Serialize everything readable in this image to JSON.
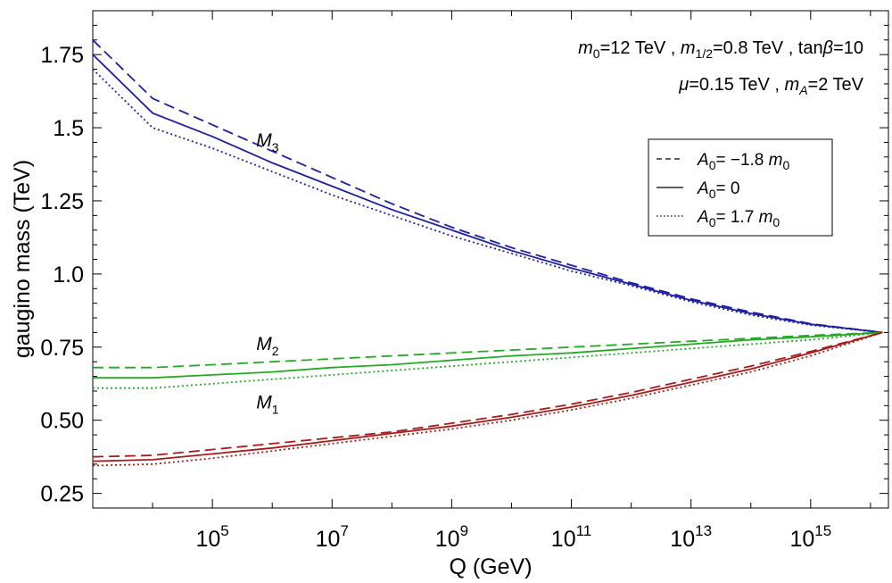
{
  "chart_data": {
    "type": "line",
    "xlabel": "Q (GeV)",
    "ylabel": "gaugino mass (TeV)",
    "x_scale": "log10",
    "xlim": [
      1000,
      1e+16
    ],
    "ylim": [
      0.2,
      1.9
    ],
    "x_ticks": [
      100000.0,
      10000000.0,
      1000000000.0,
      100000000000.0,
      10000000000000.0,
      1000000000000000.0
    ],
    "x_tick_labels": [
      {
        "base": "10",
        "exp": "5"
      },
      {
        "base": "10",
        "exp": "7"
      },
      {
        "base": "10",
        "exp": "9"
      },
      {
        "base": "10",
        "exp": "11"
      },
      {
        "base": "10",
        "exp": "13"
      },
      {
        "base": "10",
        "exp": "15"
      }
    ],
    "y_ticks": [
      0.25,
      0.5,
      0.75,
      1.0,
      1.25,
      1.5,
      1.75
    ],
    "y_tick_labels": [
      "0.25",
      "0.50",
      "0.75",
      "1.0",
      "1.25",
      "1.5",
      "1.75"
    ],
    "grid": false,
    "parameters": {
      "line1": [
        {
          "t": "m",
          "i": true
        },
        {
          "t": "0",
          "s": true
        },
        {
          "t": "=12 TeV , "
        },
        {
          "t": "m",
          "i": true
        },
        {
          "t": "1/2",
          "s": true
        },
        {
          "t": "=0.8 TeV , tan"
        },
        {
          "t": "β",
          "i": true
        },
        {
          "t": "=10"
        }
      ],
      "line2": [
        {
          "t": "μ",
          "i": true
        },
        {
          "t": "=0.15 TeV , "
        },
        {
          "t": "m",
          "i": true
        },
        {
          "t": "A",
          "s": true,
          "i": true
        },
        {
          "t": "=2 TeV"
        }
      ]
    },
    "legend": {
      "placement": "upper-right",
      "entries": [
        {
          "style": "dashed",
          "parts": [
            {
              "t": "A",
              "i": true
            },
            {
              "t": "0",
              "s": true
            },
            {
              "t": "= −1.8 "
            },
            {
              "t": "m",
              "i": true
            },
            {
              "t": "0",
              "s": true
            }
          ]
        },
        {
          "style": "solid",
          "parts": [
            {
              "t": "A",
              "i": true
            },
            {
              "t": "0",
              "s": true
            },
            {
              "t": "= 0"
            }
          ]
        },
        {
          "style": "dotted",
          "parts": [
            {
              "t": "A",
              "i": true
            },
            {
              "t": "0",
              "s": true
            },
            {
              "t": "= 1.7 "
            },
            {
              "t": "m",
              "i": true
            },
            {
              "t": "0",
              "s": true
            }
          ]
        }
      ]
    },
    "curve_labels": [
      {
        "group": "M3",
        "text": "M",
        "sub": "3",
        "at_log10_x": 6.0,
        "at_y": 1.46
      },
      {
        "group": "M2",
        "text": "M",
        "sub": "2",
        "at_log10_x": 6.0,
        "at_y": 0.765
      },
      {
        "group": "M1",
        "text": "M",
        "sub": "1",
        "at_log10_x": 6.0,
        "at_y": 0.565
      }
    ],
    "colors": {
      "M3": "#1f1fa6",
      "M2": "#22aa22",
      "M1": "#aa1a1a"
    },
    "series": [
      {
        "group": "M3",
        "style": "dashed",
        "log10_x": [
          3.0,
          4.0,
          5,
          6,
          7,
          8,
          9,
          10,
          11,
          12,
          13,
          14,
          15,
          16.2
        ],
        "y": [
          1.8,
          1.6,
          1.51,
          1.42,
          1.33,
          1.24,
          1.16,
          1.09,
          1.03,
          0.97,
          0.915,
          0.87,
          0.83,
          0.8
        ]
      },
      {
        "group": "M3",
        "style": "solid",
        "log10_x": [
          3.0,
          4.0,
          5,
          6,
          7,
          8,
          9,
          10,
          11,
          12,
          13,
          14,
          15,
          16.2
        ],
        "y": [
          1.75,
          1.55,
          1.47,
          1.38,
          1.3,
          1.22,
          1.15,
          1.08,
          1.02,
          0.965,
          0.91,
          0.865,
          0.828,
          0.8
        ]
      },
      {
        "group": "M3",
        "style": "dotted",
        "log10_x": [
          3.0,
          4.0,
          5,
          6,
          7,
          8,
          9,
          10,
          11,
          12,
          13,
          14,
          15,
          16.2
        ],
        "y": [
          1.7,
          1.5,
          1.43,
          1.35,
          1.27,
          1.2,
          1.13,
          1.07,
          1.01,
          0.96,
          0.905,
          0.86,
          0.825,
          0.8
        ]
      },
      {
        "group": "M2",
        "style": "dashed",
        "log10_x": [
          3.0,
          4.0,
          5,
          6,
          7,
          8,
          9,
          10,
          11,
          12,
          13,
          14,
          15,
          16.2
        ],
        "y": [
          0.68,
          0.68,
          0.69,
          0.7,
          0.71,
          0.72,
          0.73,
          0.74,
          0.75,
          0.76,
          0.77,
          0.78,
          0.79,
          0.8
        ]
      },
      {
        "group": "M2",
        "style": "solid",
        "log10_x": [
          3.0,
          4.0,
          5,
          6,
          7,
          8,
          9,
          10,
          11,
          12,
          13,
          14,
          15,
          16.2
        ],
        "y": [
          0.645,
          0.645,
          0.655,
          0.665,
          0.68,
          0.69,
          0.705,
          0.72,
          0.73,
          0.745,
          0.76,
          0.775,
          0.785,
          0.8
        ]
      },
      {
        "group": "M2",
        "style": "dotted",
        "log10_x": [
          3.0,
          4.0,
          5,
          6,
          7,
          8,
          9,
          10,
          11,
          12,
          13,
          14,
          15,
          16.2
        ],
        "y": [
          0.61,
          0.61,
          0.625,
          0.64,
          0.655,
          0.67,
          0.685,
          0.7,
          0.715,
          0.73,
          0.745,
          0.76,
          0.775,
          0.8
        ]
      },
      {
        "group": "M1",
        "style": "dashed",
        "log10_x": [
          3.0,
          4.0,
          5,
          6,
          7,
          8,
          9,
          10,
          11,
          12,
          13,
          14,
          15,
          16.2
        ],
        "y": [
          0.375,
          0.38,
          0.4,
          0.42,
          0.44,
          0.46,
          0.49,
          0.52,
          0.555,
          0.595,
          0.64,
          0.685,
          0.735,
          0.8
        ]
      },
      {
        "group": "M1",
        "style": "solid",
        "log10_x": [
          3.0,
          4.0,
          5,
          6,
          7,
          8,
          9,
          10,
          11,
          12,
          13,
          14,
          15,
          16.2
        ],
        "y": [
          0.36,
          0.365,
          0.385,
          0.405,
          0.43,
          0.455,
          0.48,
          0.51,
          0.545,
          0.585,
          0.63,
          0.675,
          0.73,
          0.8
        ]
      },
      {
        "group": "M1",
        "style": "dotted",
        "log10_x": [
          3.0,
          4.0,
          5,
          6,
          7,
          8,
          9,
          10,
          11,
          12,
          13,
          14,
          15,
          16.2
        ],
        "y": [
          0.345,
          0.35,
          0.37,
          0.395,
          0.42,
          0.445,
          0.47,
          0.5,
          0.535,
          0.575,
          0.62,
          0.665,
          0.72,
          0.8
        ]
      }
    ]
  }
}
